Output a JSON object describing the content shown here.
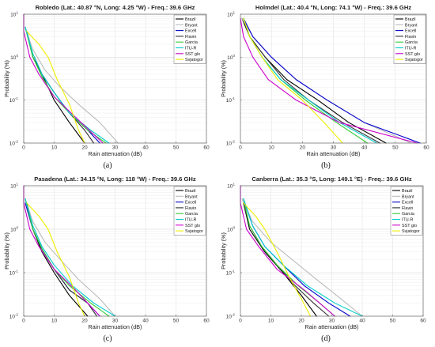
{
  "chart_data": [
    {
      "type": "line",
      "panel": "(a)",
      "title": "Robledo (Lat.: 40.87 °N, Long: 4.25 °W) - Freq.: 39.6 GHz",
      "xlabel": "Rain attenuation (dB)",
      "ylabel": "Probability (%)",
      "xlim": [
        0,
        60
      ],
      "ylim": [
        0.01,
        10
      ],
      "yscale": "log",
      "grid": true,
      "legend_position": "top-right",
      "xticks": [
        "0",
        "10",
        "20",
        "30",
        "40",
        "50",
        "60"
      ],
      "yticks": [
        "10^-2",
        "10^-1",
        "10^0",
        "10^1"
      ],
      "series": [
        {
          "name": "Brazil",
          "color": "#000000",
          "x": [
            3.5,
            6,
            10,
            15,
            20
          ],
          "y": [
            1.0,
            0.4,
            0.1,
            0.03,
            0.01
          ]
        },
        {
          "name": "Bryant",
          "color": "#bbbbbb",
          "x": [
            0.5,
            3,
            7,
            12,
            18,
            25,
            31
          ],
          "y": [
            5,
            1.5,
            0.5,
            0.2,
            0.08,
            0.03,
            0.01
          ]
        },
        {
          "name": "Excell",
          "color": "#0000cc",
          "x": [
            0.5,
            3,
            6,
            10,
            15,
            21,
            25
          ],
          "y": [
            5,
            1.0,
            0.4,
            0.15,
            0.05,
            0.02,
            0.01
          ]
        },
        {
          "name": "Flavin",
          "color": "#333333",
          "x": [
            1,
            3,
            6,
            10,
            15,
            20,
            23
          ],
          "y": [
            4,
            1.0,
            0.4,
            0.15,
            0.05,
            0.02,
            0.01
          ]
        },
        {
          "name": "Garcia",
          "color": "#33cc33",
          "x": [
            0.5,
            3,
            6,
            10,
            15,
            21,
            27
          ],
          "y": [
            5,
            1.0,
            0.35,
            0.12,
            0.05,
            0.02,
            0.01
          ]
        },
        {
          "name": "ITU-R",
          "color": "#00cccc",
          "x": [
            0.5,
            3,
            6,
            10,
            15,
            22,
            28
          ],
          "y": [
            5,
            1.2,
            0.4,
            0.15,
            0.05,
            0.02,
            0.01
          ]
        },
        {
          "name": "SST glo",
          "color": "#cc00cc",
          "x": [
            0,
            0,
            2,
            5,
            10,
            17,
            26
          ],
          "y": [
            10,
            4,
            1.0,
            0.4,
            0.12,
            0.04,
            0.01
          ]
        },
        {
          "name": "Svjatogor",
          "color": "#eeee00",
          "x": [
            1,
            5,
            8,
            11,
            15,
            18,
            20
          ],
          "y": [
            4,
            2.0,
            1.0,
            0.3,
            0.08,
            0.02,
            0.01
          ]
        }
      ]
    },
    {
      "type": "line",
      "panel": "(b)",
      "title": "Holmdel (Lat.: 40.4 °N, Long: 74.1 °W) - Freq.: 39.6 GHz",
      "xlabel": "Rain attenuation (dB)",
      "ylabel": "Probability (%)",
      "xlim": [
        0,
        60
      ],
      "ylim": [
        0.01,
        10
      ],
      "yscale": "log",
      "grid": true,
      "legend_position": "top-right",
      "xticks": [
        "0",
        "10",
        "20",
        "30",
        "40",
        "50",
        "60"
      ],
      "yticks": [
        "10^-2",
        "10^-1",
        "10^0",
        "10^1"
      ],
      "series": [
        {
          "name": "Brazil",
          "color": "#000000",
          "x": [
            0.5,
            3,
            8,
            15,
            25,
            35,
            47
          ],
          "y": [
            8,
            3,
            1.0,
            0.3,
            0.1,
            0.03,
            0.01
          ]
        },
        {
          "name": "Bryant",
          "color": "#bbbbbb",
          "x": [
            0.5,
            4,
            10,
            18,
            28,
            40,
            55
          ],
          "y": [
            8,
            3,
            1.0,
            0.3,
            0.1,
            0.03,
            0.01
          ]
        },
        {
          "name": "Excell",
          "color": "#0000cc",
          "x": [
            1,
            4,
            10,
            18,
            28,
            40,
            58
          ],
          "y": [
            8,
            3,
            1.0,
            0.3,
            0.1,
            0.03,
            0.01
          ]
        },
        {
          "name": "Flavin",
          "color": "#333333",
          "x": [
            1,
            3,
            8,
            14,
            22,
            33,
            45
          ],
          "y": [
            8,
            3,
            1.0,
            0.3,
            0.1,
            0.03,
            0.01
          ]
        },
        {
          "name": "Garcia",
          "color": "#33cc33",
          "x": [
            1,
            3,
            7,
            13,
            21,
            31,
            41
          ],
          "y": [
            8,
            3,
            1.0,
            0.3,
            0.1,
            0.03,
            0.01
          ]
        },
        {
          "name": "ITU-R",
          "color": "#00cccc",
          "x": [
            1,
            3,
            7,
            13,
            22,
            32,
            44
          ],
          "y": [
            8,
            3,
            1.0,
            0.3,
            0.1,
            0.03,
            0.01
          ]
        },
        {
          "name": "SST glo",
          "color": "#cc00cc",
          "x": [
            0,
            1,
            4,
            9,
            18,
            32,
            57
          ],
          "y": [
            8,
            3,
            1.0,
            0.3,
            0.1,
            0.03,
            0.01
          ]
        },
        {
          "name": "Svjatogor",
          "color": "#eeee00",
          "x": [
            1,
            3,
            7,
            12,
            20,
            27,
            33
          ],
          "y": [
            8,
            3,
            1.0,
            0.3,
            0.1,
            0.03,
            0.01
          ]
        }
      ]
    },
    {
      "type": "line",
      "panel": "(c)",
      "title": "Pasadena (Lat.: 34.15 °N, Long: 118 °W) - Freq.: 39.6 GHz",
      "xlabel": "Rain attenuation (dB)",
      "ylabel": "Probability (%)",
      "xlim": [
        0,
        60
      ],
      "ylim": [
        0.01,
        10
      ],
      "yscale": "log",
      "grid": true,
      "legend_position": "top-right",
      "xticks": [
        "0",
        "10",
        "20",
        "30",
        "40",
        "50",
        "60"
      ],
      "yticks": [
        "10^-2",
        "10^-1",
        "10^0",
        "10^1"
      ],
      "series": [
        {
          "name": "Brazil",
          "color": "#000000",
          "x": [
            3,
            6,
            10,
            15,
            21
          ],
          "y": [
            1.0,
            0.3,
            0.1,
            0.03,
            0.01
          ]
        },
        {
          "name": "Bryant",
          "color": "#bbbbbb",
          "x": [
            0.5,
            3,
            7,
            12,
            18,
            25,
            30
          ],
          "y": [
            5,
            1.5,
            0.5,
            0.2,
            0.07,
            0.025,
            0.01
          ]
        },
        {
          "name": "Excell",
          "color": "#0000cc",
          "x": [
            0.5,
            3,
            6,
            10,
            15,
            21,
            25
          ],
          "y": [
            4,
            1.0,
            0.35,
            0.12,
            0.04,
            0.02,
            0.01
          ]
        },
        {
          "name": "Flavin",
          "color": "#333333",
          "x": [
            1,
            3,
            6,
            10,
            15,
            21,
            24
          ],
          "y": [
            4,
            1.0,
            0.35,
            0.12,
            0.04,
            0.02,
            0.01
          ]
        },
        {
          "name": "Garcia",
          "color": "#33cc33",
          "x": [
            0.5,
            3,
            6,
            10,
            15,
            22,
            28
          ],
          "y": [
            5,
            1.0,
            0.35,
            0.12,
            0.05,
            0.02,
            0.01
          ]
        },
        {
          "name": "ITU-R",
          "color": "#00cccc",
          "x": [
            0.5,
            3,
            6,
            10,
            16,
            23,
            30
          ],
          "y": [
            5,
            1.2,
            0.4,
            0.15,
            0.05,
            0.02,
            0.01
          ]
        },
        {
          "name": "SST glo",
          "color": "#cc00cc",
          "x": [
            0,
            0,
            2,
            5,
            10,
            17,
            25
          ],
          "y": [
            10,
            4,
            1.0,
            0.4,
            0.12,
            0.04,
            0.01
          ]
        },
        {
          "name": "Svjatogor",
          "color": "#eeee00",
          "x": [
            1,
            5,
            8,
            11,
            15,
            18,
            20
          ],
          "y": [
            4,
            2.0,
            1.0,
            0.3,
            0.08,
            0.02,
            0.01
          ]
        }
      ]
    },
    {
      "type": "line",
      "panel": "(d)",
      "title": "Canberra (Lat.: 35.3 °S, Long: 149.1 °E) - Freq.: 39.6 GHz",
      "xlabel": "Rain attenuation (dB)",
      "ylabel": "Probability (%)",
      "xlim": [
        0,
        60
      ],
      "ylim": [
        0.01,
        10
      ],
      "yscale": "log",
      "grid": true,
      "legend_position": "top-right",
      "xticks": [
        "0",
        "10",
        "20",
        "30",
        "40",
        "50",
        "60"
      ],
      "yticks": [
        "10^-2",
        "10^-1",
        "10^0",
        "10^1"
      ],
      "series": [
        {
          "name": "Brazil",
          "color": "#000000",
          "x": [
            1,
            3,
            8,
            14,
            20,
            25
          ],
          "y": [
            4,
            1.0,
            0.3,
            0.1,
            0.03,
            0.01
          ]
        },
        {
          "name": "Bryant",
          "color": "#bbbbbb",
          "x": [
            0.5,
            4,
            10,
            17,
            25,
            33,
            40
          ],
          "y": [
            5,
            1.5,
            0.5,
            0.2,
            0.07,
            0.025,
            0.01
          ]
        },
        {
          "name": "Excell",
          "color": "#0000cc",
          "x": [
            1,
            4,
            8,
            14,
            21,
            29,
            36
          ],
          "y": [
            5,
            1.2,
            0.4,
            0.15,
            0.05,
            0.02,
            0.01
          ]
        },
        {
          "name": "Flavin",
          "color": "#333333",
          "x": [
            1,
            3,
            7,
            12,
            18,
            24,
            29
          ],
          "y": [
            4,
            1.2,
            0.4,
            0.15,
            0.05,
            0.02,
            0.01
          ]
        },
        {
          "name": "Garcia",
          "color": "#33cc33",
          "x": [
            1,
            3,
            7,
            12,
            19,
            26,
            31
          ],
          "y": [
            5,
            1.2,
            0.4,
            0.15,
            0.05,
            0.02,
            0.01
          ]
        },
        {
          "name": "ITU-R",
          "color": "#00cccc",
          "x": [
            1,
            4,
            8,
            14,
            22,
            31,
            40
          ],
          "y": [
            5,
            1.2,
            0.4,
            0.15,
            0.05,
            0.02,
            0.01
          ]
        },
        {
          "name": "SST glo",
          "color": "#cc00cc",
          "x": [
            0,
            0,
            2,
            6,
            12,
            21,
            31
          ],
          "y": [
            10,
            4,
            1.0,
            0.4,
            0.12,
            0.04,
            0.01
          ]
        },
        {
          "name": "Svjatogor",
          "color": "#eeee00",
          "x": [
            1,
            5,
            8,
            12,
            16,
            20,
            23
          ],
          "y": [
            4,
            2.0,
            1.0,
            0.3,
            0.08,
            0.025,
            0.01
          ]
        }
      ]
    }
  ]
}
